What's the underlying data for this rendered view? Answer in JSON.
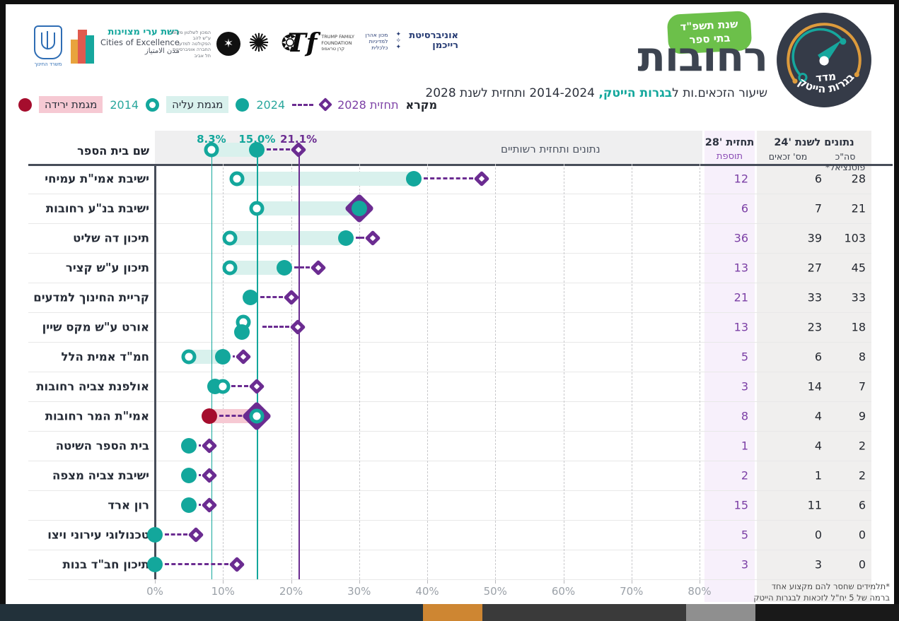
{
  "header": {
    "title": "רחובות",
    "subtitle_prefix": "שיעור הזכאים.ות ל",
    "subtitle_highlight": "בגרות הייטק,",
    "subtitle_suffix": " 2014-2024 ותחזית לשנת 2028",
    "year_pill_line1": "שנת תשפ\"ד",
    "year_pill_line2": "בתי ספר",
    "badge_top": "מדד",
    "badge_bottom": "בגרות הייטק"
  },
  "logos": {
    "ministry": "משרד החינוך",
    "cities_he": "רשת ערי מצוינות",
    "cities_en": "Cities of Excellence",
    "cities_ar": "مدن الامتياز",
    "institute_line1": "המכון לשלטון מקומי ע\"ש להב",
    "institute_line2": "הפקולטה למדעי החברה אוניברסיטת תל אביב",
    "tf_mark": "Tf",
    "tf_line1": "TRUMP FAMILY",
    "tf_line2": "FOUNDATION",
    "tf_line3": "קרן טראמפ",
    "reichman_line1": "אוניברסיטת",
    "reichman_line2": "רייכמן",
    "aaron_line1": "מכון אהרן",
    "aaron_line2": "למדיניות כלכלית"
  },
  "legend": {
    "title": "מקרא",
    "forecast_label": "תחזית 2028",
    "label_2024": "2024",
    "up_label": "מגמת עליה",
    "label_2014": "2014",
    "down_label": "מגמת ירידה"
  },
  "table": {
    "school_col": "שם בית הספר",
    "municipal_header": "נתונים ותחזית רשותיים",
    "forecast28_header": "תחזית '28",
    "forecast28_sub": "תוספת",
    "data24_header": "נתונים לשנת '24",
    "zakaim_sub": "מס' זכאים",
    "potential_sub": "סה\"כ פוטנציאל*",
    "footnote_line1": "*תלמידים שחסר להם מקצוע אחד",
    "footnote_line2": "ברמה של 5 יח\"ל לזכאות לבגרות הייטק"
  },
  "colors": {
    "teal": "#13a79c",
    "teal_light": "#d9f1ed",
    "purple": "#6b2c91",
    "purple_text": "#7b3fa5",
    "red": "#a50d2d",
    "pink": "#f6c9d3",
    "green": "#6cc04a",
    "dark": "#3d4450"
  },
  "chart_data": {
    "type": "dumbbell",
    "title": "רחובות",
    "xlabel": "",
    "x_ticks": [
      "0%",
      "10%",
      "20%",
      "30%",
      "40%",
      "50%",
      "60%",
      "70%",
      "80%"
    ],
    "x_range": [
      0,
      85
    ],
    "legend_position": "top-left",
    "city_summary": {
      "y2014": 8.3,
      "y2024": 15.0,
      "forecast_2028": 21.1,
      "labels": [
        "8.3%",
        "15.0%",
        "21.1%"
      ]
    },
    "rows": [
      {
        "school": "ישיבת אמי\"ת עמיחי",
        "y2014": 12,
        "y2024": 38,
        "forecast": 48,
        "trend": "up",
        "overlap": "none",
        "addition": "12",
        "eligible": "6",
        "potential": "28"
      },
      {
        "school": "ישיבת בנ\"ע רחובות",
        "y2014": 15,
        "y2024": 30,
        "forecast": 30,
        "trend": "up",
        "overlap": "forecast_on_2024",
        "addition": "6",
        "eligible": "7",
        "potential": "21"
      },
      {
        "school": "תיכון דה שליט",
        "y2014": 11,
        "y2024": 28,
        "forecast": 32,
        "trend": "up",
        "overlap": "none",
        "addition": "36",
        "eligible": "39",
        "potential": "103"
      },
      {
        "school": "תיכון ע\"ש קציר",
        "y2014": 11,
        "y2024": 19,
        "forecast": 24,
        "trend": "up",
        "overlap": "none",
        "addition": "13",
        "eligible": "27",
        "potential": "45"
      },
      {
        "school": "קריית החינוך למדעים",
        "y2014": null,
        "y2024": 14,
        "forecast": 20,
        "trend": "flat",
        "overlap": "none",
        "addition": "21",
        "eligible": "33",
        "potential": "33"
      },
      {
        "school": "אורט ע\"ש מקס שיין",
        "y2014": 13,
        "y2024": 12.8,
        "forecast": 21,
        "trend": "flat",
        "overlap": "stacked",
        "addition": "13",
        "eligible": "23",
        "potential": "18"
      },
      {
        "school": "חמ\"ד אמית הלל",
        "y2014": 5,
        "y2024": 10,
        "forecast": 13,
        "trend": "up",
        "overlap": "none",
        "addition": "5",
        "eligible": "6",
        "potential": "8"
      },
      {
        "school": "אולפנת צביה רחובות",
        "y2014": 10,
        "y2024": 8.8,
        "forecast": 15,
        "trend": "flat",
        "overlap": "none",
        "addition": "3",
        "eligible": "14",
        "potential": "7"
      },
      {
        "school": "אמי\"ת המר רחובות",
        "y2014": 15,
        "y2024": 8,
        "forecast": 15,
        "trend": "down",
        "overlap": "forecast_on_2014",
        "addition": "8",
        "eligible": "4",
        "potential": "9"
      },
      {
        "school": "בית הספר השיטה",
        "y2014": null,
        "y2024": 5,
        "forecast": 8,
        "trend": "flat",
        "overlap": "none",
        "addition": "1",
        "eligible": "4",
        "potential": "2"
      },
      {
        "school": "ישיבת צביה מצפה",
        "y2014": null,
        "y2024": 5,
        "forecast": 8,
        "trend": "flat",
        "overlap": "none",
        "addition": "2",
        "eligible": "1",
        "potential": "2"
      },
      {
        "school": "רון ארד",
        "y2014": null,
        "y2024": 5,
        "forecast": 8,
        "trend": "flat",
        "overlap": "none",
        "addition": "15",
        "eligible": "11",
        "potential": "6"
      },
      {
        "school": "טכנולוגי עירוני ויצו",
        "y2014": null,
        "y2024": 0,
        "forecast": 6,
        "trend": "flat",
        "overlap": "none",
        "addition": "5",
        "eligible": "0",
        "potential": "0"
      },
      {
        "school": "תיכון חב\"ד בנות",
        "y2014": null,
        "y2024": 0,
        "forecast": 12,
        "trend": "flat",
        "overlap": "none",
        "addition": "3",
        "eligible": "3",
        "potential": "0"
      }
    ]
  }
}
